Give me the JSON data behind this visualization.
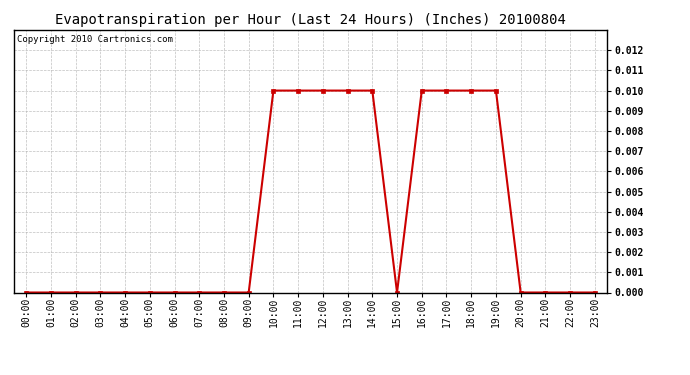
{
  "title": "Evapotranspiration per Hour (Last 24 Hours) (Inches) 20100804",
  "copyright": "Copyright 2010 Cartronics.com",
  "x_labels": [
    "00:00",
    "01:00",
    "02:00",
    "03:00",
    "04:00",
    "05:00",
    "06:00",
    "07:00",
    "08:00",
    "09:00",
    "10:00",
    "11:00",
    "12:00",
    "13:00",
    "14:00",
    "15:00",
    "16:00",
    "17:00",
    "18:00",
    "19:00",
    "20:00",
    "21:00",
    "22:00",
    "23:00"
  ],
  "y_values": [
    0.0,
    0.0,
    0.0,
    0.0,
    0.0,
    0.0,
    0.0,
    0.0,
    0.0,
    0.0,
    0.01,
    0.01,
    0.01,
    0.01,
    0.01,
    0.0,
    0.01,
    0.01,
    0.01,
    0.01,
    0.0,
    0.0,
    0.0,
    0.0
  ],
  "line_color": "#cc0000",
  "marker": "s",
  "marker_size": 2.5,
  "ylim": [
    0,
    0.013
  ],
  "yticks": [
    0.0,
    0.001,
    0.002,
    0.003,
    0.004,
    0.005,
    0.006,
    0.007,
    0.008,
    0.009,
    0.01,
    0.011,
    0.012
  ],
  "grid_color": "#b0b0b0",
  "bg_color": "#ffffff",
  "title_fontsize": 10,
  "copyright_fontsize": 6.5,
  "tick_fontsize": 7,
  "linewidth": 1.5
}
